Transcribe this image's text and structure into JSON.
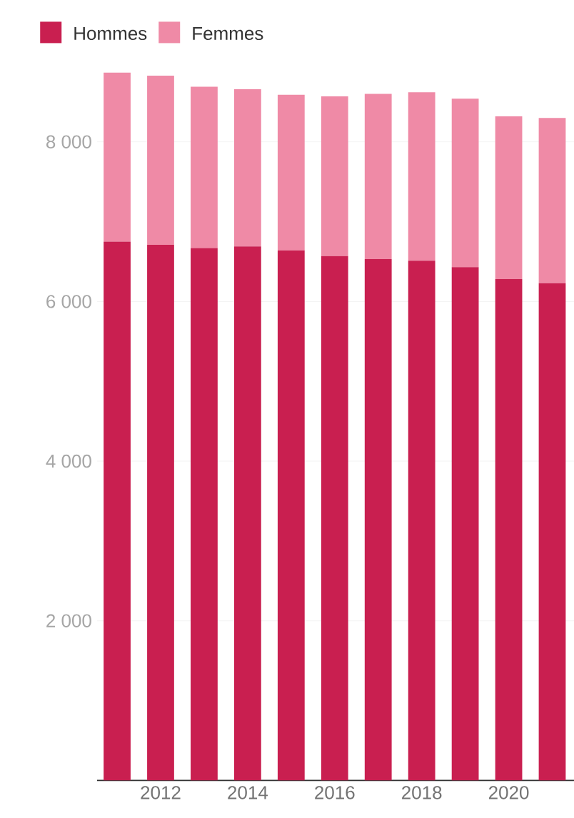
{
  "chart_data": {
    "type": "bar",
    "stacked": true,
    "categories": [
      null,
      "2012",
      null,
      "2014",
      null,
      "2016",
      null,
      "2018",
      null,
      "2020",
      null
    ],
    "series": [
      {
        "name": "Hommes",
        "color": "#c91f50",
        "values": [
          6750,
          6710,
          6670,
          6690,
          6640,
          6570,
          6530,
          6510,
          6430,
          6280,
          6230
        ]
      },
      {
        "name": "Femmes",
        "color": "#ef8aa6",
        "values": [
          2120,
          2120,
          2020,
          1970,
          1950,
          2000,
          2070,
          2110,
          2110,
          2040,
          2070
        ]
      }
    ],
    "ylim": [
      0,
      8870
    ],
    "yticks": [
      {
        "value": 2000,
        "label": "2 000"
      },
      {
        "value": 4000,
        "label": "4 000"
      },
      {
        "value": 6000,
        "label": "6 000"
      },
      {
        "value": 8000,
        "label": "8 000"
      }
    ],
    "grid": "y",
    "legend": "top left"
  }
}
